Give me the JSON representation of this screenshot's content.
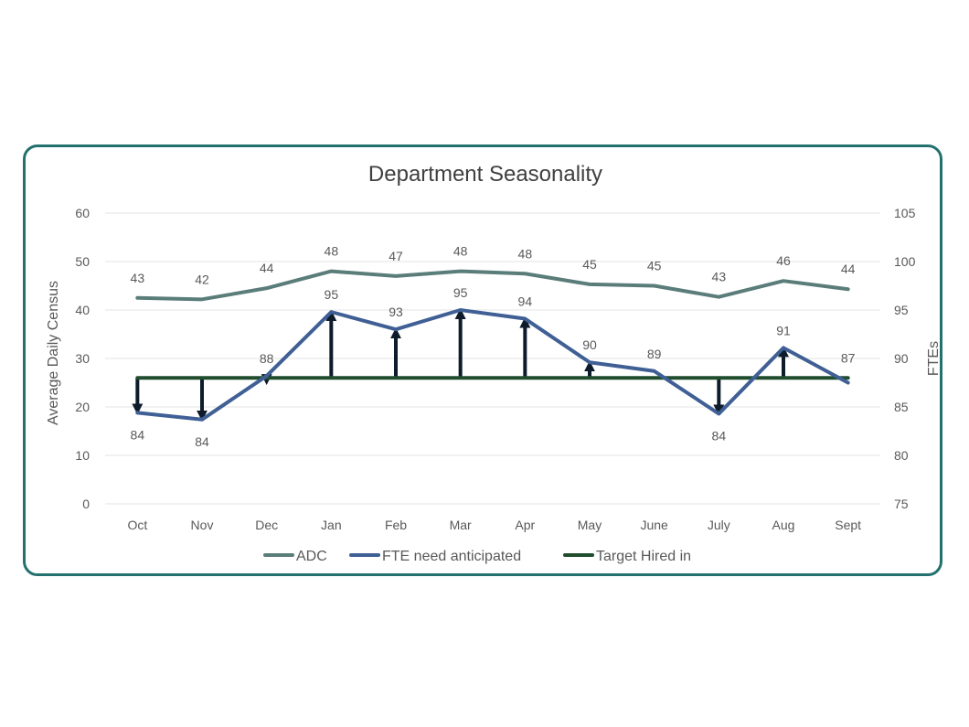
{
  "chart_data": {
    "type": "line",
    "title": "Department Seasonality",
    "categories": [
      "Oct",
      "Nov",
      "Dec",
      "Jan",
      "Feb",
      "Mar",
      "Apr",
      "May",
      "June",
      "July",
      "Aug",
      "Sept"
    ],
    "left_axis": {
      "label": "Average Daily Census",
      "range": [
        0,
        60
      ],
      "ticks": [
        0,
        10,
        20,
        30,
        40,
        50,
        60
      ]
    },
    "right_axis": {
      "label": "FTEs",
      "range": [
        75,
        105
      ],
      "ticks": [
        75,
        80,
        85,
        90,
        95,
        100,
        105
      ]
    },
    "series": [
      {
        "name": "ADC",
        "axis": "left",
        "color": "#5a7d7a",
        "values": [
          42.5,
          42.2,
          44.5,
          48,
          47,
          48,
          47.5,
          45.3,
          45,
          42.7,
          46,
          44.3
        ],
        "labels": [
          "43",
          "42",
          "44",
          "48",
          "47",
          "48",
          "48",
          "45",
          "45",
          "43",
          "46",
          "44"
        ]
      },
      {
        "name": "FTE need anticipated",
        "axis": "right",
        "color": "#3f5f95",
        "values": [
          84.4,
          83.7,
          88.2,
          94.8,
          93,
          95,
          94.1,
          89.6,
          88.7,
          84.3,
          91.1,
          87.5
        ],
        "labels": [
          "84",
          "84",
          "88",
          "95",
          "93",
          "95",
          "94",
          "90",
          "89",
          "84",
          "91",
          "87"
        ]
      },
      {
        "name": "Target Hired in",
        "axis": "right",
        "color": "#1f4d2e",
        "values": [
          88,
          88,
          88,
          88,
          88,
          88,
          88,
          88,
          88,
          88,
          88,
          88
        ]
      }
    ],
    "arrows_months": [
      "Oct",
      "Nov",
      "Dec",
      "Jan",
      "Feb",
      "Mar",
      "Apr",
      "May",
      "July",
      "Aug"
    ],
    "legend_position": "bottom",
    "grid": true
  }
}
